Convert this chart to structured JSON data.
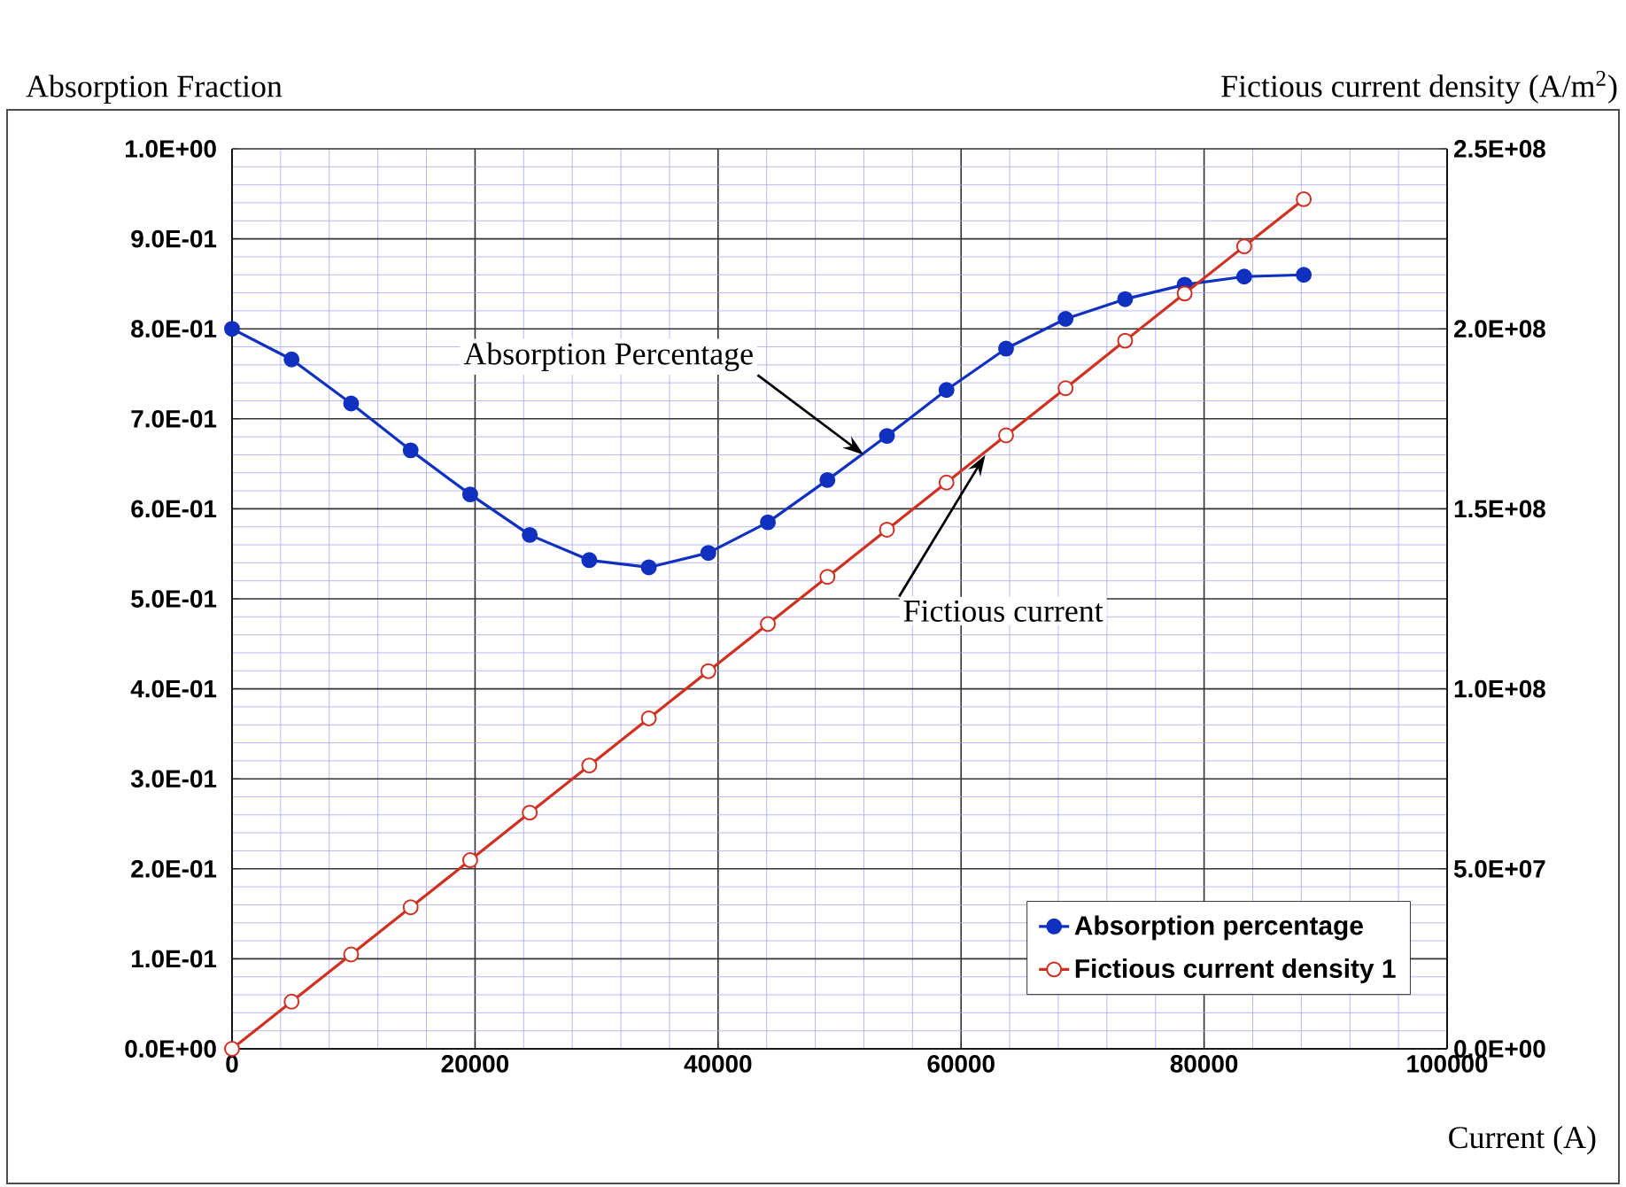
{
  "chart_data": {
    "type": "line",
    "ylabel": "Absorption Fraction",
    "y2label": "Fictious current density (A/m$^{2}$)",
    "xlabel": "Current (A)",
    "x": [
      0,
      4900,
      9800,
      14700,
      19600,
      24500,
      29400,
      34300,
      39200,
      44100,
      49000,
      53900,
      58800,
      63700,
      68600,
      73500,
      78400,
      83300,
      88200
    ],
    "series": [
      {
        "name": "Absorption percentage",
        "color": "#1030c0",
        "marker": "circle",
        "values": [
          0.8,
          0.766,
          0.717,
          0.665,
          0.616,
          0.571,
          0.543,
          0.535,
          0.551,
          0.585,
          0.632,
          0.681,
          0.732,
          0.778,
          0.811,
          0.833,
          0.849,
          0.858,
          0.86
        ]
      },
      {
        "name": "Fictious current density 1",
        "color": "#d03020",
        "marker": "circle",
        "axis": "y2",
        "values": [
          0,
          13100000,
          26200000,
          39300000,
          52400000,
          65600000,
          78700000,
          91800000,
          104900000,
          118000000,
          131100000,
          144200000,
          157300000,
          170400000,
          183500000,
          196700000,
          209800000,
          222900000,
          236000000
        ]
      }
    ],
    "xlim": [
      0,
      100000
    ],
    "xticks": [
      0,
      {
        "value": 4000,
        "label": null
      },
      {
        "value": 8000,
        "label": null
      },
      {
        "value": 12000,
        "label": null
      },
      {
        "value": 16000,
        "label": null
      },
      20000,
      {
        "value": 24000,
        "label": null
      },
      {
        "value": 28000,
        "label": null
      },
      {
        "value": 32000,
        "label": null
      },
      {
        "value": 36000,
        "label": null
      },
      40000,
      {
        "value": 44000,
        "label": null
      },
      {
        "value": 48000,
        "label": null
      },
      {
        "value": 52000,
        "label": null
      },
      {
        "value": 56000,
        "label": null
      },
      60000,
      {
        "value": 64000,
        "label": null
      },
      {
        "value": 68000,
        "label": null
      },
      {
        "value": 72000,
        "label": null
      },
      {
        "value": 76000,
        "label": null
      },
      80000,
      {
        "value": 84000,
        "label": null
      },
      {
        "value": 88000,
        "label": null
      },
      {
        "value": 92000,
        "label": null
      },
      {
        "value": 96000,
        "label": null
      },
      100000
    ],
    "ylim": [
      0,
      1
    ],
    "yticks": [
      {
        "value": 0,
        "label": "0.0E+00"
      },
      {
        "value": 0.02,
        "label": null
      },
      {
        "value": 0.04,
        "label": null
      },
      {
        "value": 0.06,
        "label": null
      },
      {
        "value": 0.08,
        "label": null
      },
      {
        "value": 0.1,
        "label": "1.0E-01"
      },
      {
        "value": 0.12,
        "label": null
      },
      {
        "value": 0.14,
        "label": null
      },
      {
        "value": 0.16,
        "label": null
      },
      {
        "value": 0.18,
        "label": null
      },
      {
        "value": 0.2,
        "label": "2.0E-01"
      },
      {
        "value": 0.22,
        "label": null
      },
      {
        "value": 0.24,
        "label": null
      },
      {
        "value": 0.26,
        "label": null
      },
      {
        "value": 0.28,
        "label": null
      },
      {
        "value": 0.3,
        "label": "3.0E-01"
      },
      {
        "value": 0.32,
        "label": null
      },
      {
        "value": 0.34,
        "label": null
      },
      {
        "value": 0.36,
        "label": null
      },
      {
        "value": 0.38,
        "label": null
      },
      {
        "value": 0.4,
        "label": "4.0E-01"
      },
      {
        "value": 0.42,
        "label": null
      },
      {
        "value": 0.44,
        "label": null
      },
      {
        "value": 0.46,
        "label": null
      },
      {
        "value": 0.48,
        "label": null
      },
      {
        "value": 0.5,
        "label": "5.0E-01"
      },
      {
        "value": 0.52,
        "label": null
      },
      {
        "value": 0.54,
        "label": null
      },
      {
        "value": 0.56,
        "label": null
      },
      {
        "value": 0.58,
        "label": null
      },
      {
        "value": 0.6,
        "label": "6.0E-01"
      },
      {
        "value": 0.62,
        "label": null
      },
      {
        "value": 0.64,
        "label": null
      },
      {
        "value": 0.66,
        "label": null
      },
      {
        "value": 0.68,
        "label": null
      },
      {
        "value": 0.7,
        "label": "7.0E-01"
      },
      {
        "value": 0.72,
        "label": null
      },
      {
        "value": 0.74,
        "label": null
      },
      {
        "value": 0.76,
        "label": null
      },
      {
        "value": 0.78,
        "label": null
      },
      {
        "value": 0.8,
        "label": "8.0E-01"
      },
      {
        "value": 0.82,
        "label": null
      },
      {
        "value": 0.84,
        "label": null
      },
      {
        "value": 0.86,
        "label": null
      },
      {
        "value": 0.88,
        "label": null
      },
      {
        "value": 0.9,
        "label": "9.0E-01"
      },
      {
        "value": 0.92,
        "label": null
      },
      {
        "value": 0.94,
        "label": null
      },
      {
        "value": 0.96,
        "label": null
      },
      {
        "value": 0.98,
        "label": null
      },
      {
        "value": 1,
        "label": "1.0E+00"
      }
    ],
    "y2lim": [
      0,
      250000000
    ],
    "y2ticks": [
      {
        "value": 0,
        "label": "0.0E+00"
      },
      {
        "value": 50000000,
        "label": "5.0E+07"
      },
      {
        "value": 100000000,
        "label": "1.0E+08"
      },
      {
        "value": 150000000,
        "label": "1.5E+08"
      },
      {
        "value": 200000000,
        "label": "2.0E+08"
      },
      {
        "value": 250000000,
        "label": "2.5E+08"
      }
    ],
    "annotations": [
      {
        "text": "Absorption Percentage",
        "x": 52000,
        "y": 0.66
      },
      {
        "text": "Fictious current",
        "x": 62000,
        "y": 0.66
      }
    ],
    "grid": true,
    "legend": "bottom right",
    "line_style": "solid"
  }
}
